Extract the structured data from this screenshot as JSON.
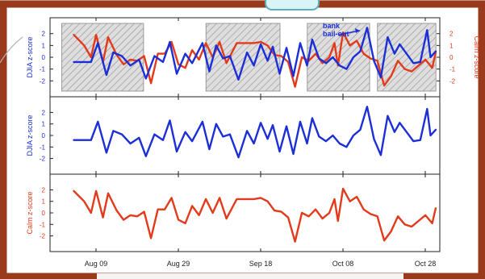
{
  "chart_data": {
    "type": "line",
    "x_ticks": [
      "Aug 09",
      "Aug 29",
      "Sep 18",
      "Oct 08",
      "Oct 28"
    ],
    "panels": [
      {
        "id": "combined",
        "ylabel_left": "DJIA z-score",
        "ylabel_right": "Calm z-score",
        "ylim": [
          -2.8,
          2.8
        ],
        "yticks": [
          -2,
          -1,
          0,
          1,
          2
        ],
        "annotation": [
          "bank",
          "bail-out"
        ],
        "shaded_periods": [
          {
            "from": 0.03,
            "to": 0.24
          },
          {
            "from": 0.4,
            "to": 0.59
          },
          {
            "from": 0.66,
            "to": 0.82
          },
          {
            "from": 0.84,
            "to": 0.99
          }
        ]
      },
      {
        "id": "djia",
        "ylabel_left": "DJIA z-score",
        "ylim": [
          -2.8,
          2.8
        ],
        "yticks": [
          -2,
          -1,
          0,
          1,
          2
        ]
      },
      {
        "id": "calm",
        "ylabel_left": "Calm z-score",
        "ylim": [
          -2.8,
          2.8
        ],
        "yticks": [
          -2,
          -1,
          0,
          1,
          2
        ]
      }
    ],
    "series": [
      {
        "key": "djia",
        "color": "#1c2fd6",
        "points": [
          [
            0.02,
            -0.4
          ],
          [
            0.07,
            -0.4
          ],
          [
            0.09,
            1.2
          ],
          [
            0.115,
            -1.5
          ],
          [
            0.135,
            0.4
          ],
          [
            0.16,
            0.1
          ],
          [
            0.185,
            -0.7
          ],
          [
            0.21,
            -0.2
          ],
          [
            0.23,
            -1.8
          ],
          [
            0.255,
            0.1
          ],
          [
            0.28,
            -0.4
          ],
          [
            0.3,
            1.3
          ],
          [
            0.32,
            -1.4
          ],
          [
            0.345,
            0.3
          ],
          [
            0.365,
            -0.5
          ],
          [
            0.395,
            1.2
          ],
          [
            0.415,
            -1.2
          ],
          [
            0.435,
            1.0
          ],
          [
            0.455,
            -0.1
          ],
          [
            0.475,
            0.1
          ],
          [
            0.5,
            -1.9
          ],
          [
            0.525,
            0.4
          ],
          [
            0.545,
            -0.7
          ],
          [
            0.565,
            1.1
          ],
          [
            0.585,
            -0.3
          ],
          [
            0.6,
            0.9
          ],
          [
            0.62,
            -1.4
          ],
          [
            0.64,
            0.8
          ],
          [
            0.66,
            -1.6
          ],
          [
            0.68,
            1.2
          ],
          [
            0.7,
            -0.7
          ],
          [
            0.715,
            1.5
          ],
          [
            0.735,
            -0.1
          ],
          [
            0.755,
            -0.5
          ],
          [
            0.775,
            0.0
          ],
          [
            0.795,
            -0.7
          ],
          [
            0.815,
            -1.0
          ],
          [
            0.835,
            0.0
          ],
          [
            0.855,
            0.5
          ],
          [
            0.875,
            2.5
          ],
          [
            0.895,
            -0.3
          ],
          [
            0.915,
            -1.7
          ],
          [
            0.935,
            1.7
          ],
          [
            0.955,
            0.3
          ],
          [
            0.97,
            1.1
          ],
          [
            0.99,
            0.3
          ],
          [
            1.01,
            -0.5
          ],
          [
            1.03,
            -0.4
          ],
          [
            1.05,
            2.3
          ],
          [
            1.06,
            0.0
          ],
          [
            1.075,
            0.5
          ]
        ]
      },
      {
        "key": "calm",
        "color": "#e23a1a",
        "points": [
          [
            0.02,
            1.9
          ],
          [
            0.05,
            1.0
          ],
          [
            0.07,
            0.0
          ],
          [
            0.085,
            1.9
          ],
          [
            0.105,
            -0.4
          ],
          [
            0.12,
            1.7
          ],
          [
            0.145,
            0.2
          ],
          [
            0.165,
            -0.6
          ],
          [
            0.185,
            -0.2
          ],
          [
            0.205,
            -0.3
          ],
          [
            0.225,
            0.1
          ],
          [
            0.245,
            -2.2
          ],
          [
            0.265,
            0.3
          ],
          [
            0.285,
            0.3
          ],
          [
            0.305,
            1.3
          ],
          [
            0.325,
            -0.6
          ],
          [
            0.345,
            -0.9
          ],
          [
            0.365,
            0.6
          ],
          [
            0.385,
            -0.2
          ],
          [
            0.405,
            1.2
          ],
          [
            0.425,
            0.0
          ],
          [
            0.445,
            1.3
          ],
          [
            0.465,
            -0.5
          ],
          [
            0.495,
            1.2
          ],
          [
            0.52,
            1.2
          ],
          [
            0.545,
            1.2
          ],
          [
            0.565,
            1.3
          ],
          [
            0.585,
            1.0
          ],
          [
            0.605,
            0.2
          ],
          [
            0.625,
            0.1
          ],
          [
            0.645,
            -0.4
          ],
          [
            0.665,
            -2.5
          ],
          [
            0.685,
            0.0
          ],
          [
            0.705,
            -0.3
          ],
          [
            0.725,
            0.3
          ],
          [
            0.745,
            -0.5
          ],
          [
            0.765,
            0.0
          ],
          [
            0.78,
            1.2
          ],
          [
            0.79,
            -0.7
          ],
          [
            0.805,
            2.1
          ],
          [
            0.825,
            1.0
          ],
          [
            0.845,
            1.4
          ],
          [
            0.865,
            0.3
          ],
          [
            0.885,
            -0.1
          ],
          [
            0.905,
            -0.3
          ],
          [
            0.925,
            -2.4
          ],
          [
            0.945,
            -1.6
          ],
          [
            0.965,
            -0.3
          ],
          [
            0.985,
            -1.0
          ],
          [
            1.005,
            -1.2
          ],
          [
            1.025,
            -0.7
          ],
          [
            1.045,
            -0.2
          ],
          [
            1.065,
            -0.9
          ],
          [
            1.075,
            0.4
          ]
        ]
      }
    ]
  }
}
